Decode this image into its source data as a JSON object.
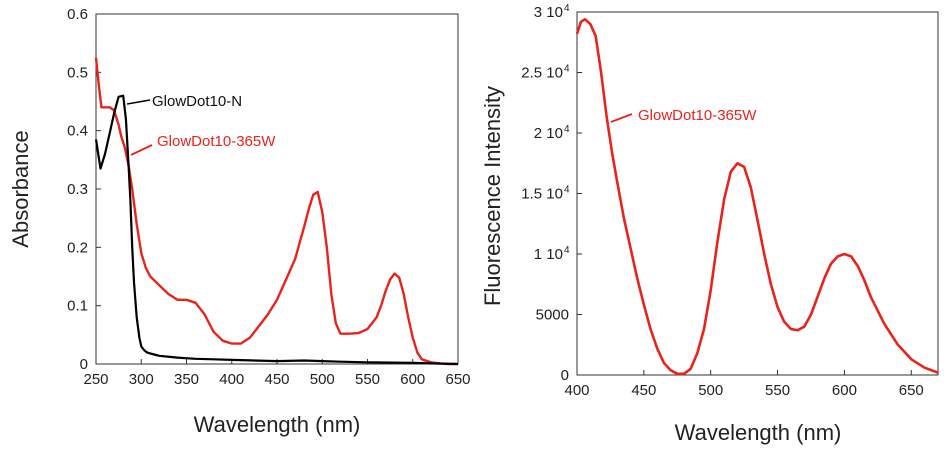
{
  "chart_data": [
    {
      "type": "line",
      "title": "",
      "xlabel": "Wavelength (nm)",
      "ylabel": "Absorbance",
      "xlim": [
        250,
        650
      ],
      "ylim": [
        0,
        0.6
      ],
      "xticks": [
        "250",
        "300",
        "350",
        "400",
        "450",
        "500",
        "550",
        "600",
        "650"
      ],
      "yticks": [
        "0",
        "0.1",
        "0.2",
        "0.3",
        "0.4",
        "0.5",
        "0.6"
      ],
      "series": [
        {
          "name": "GlowDot10-N",
          "color": "#000000",
          "x": [
            250,
            255,
            260,
            265,
            270,
            275,
            280,
            283,
            286,
            288,
            290,
            292,
            295,
            298,
            300,
            303,
            306,
            310,
            320,
            340,
            360,
            380,
            400,
            450,
            480,
            500,
            520,
            550,
            600,
            620,
            650
          ],
          "y": [
            0.385,
            0.335,
            0.36,
            0.395,
            0.43,
            0.458,
            0.46,
            0.42,
            0.34,
            0.28,
            0.2,
            0.14,
            0.08,
            0.045,
            0.03,
            0.024,
            0.02,
            0.018,
            0.014,
            0.011,
            0.009,
            0.008,
            0.007,
            0.005,
            0.006,
            0.005,
            0.004,
            0.003,
            0.002,
            0.001,
            0.0
          ]
        },
        {
          "name": "GlowDot10-365W",
          "color": "#e8231c",
          "x": [
            250,
            253,
            256,
            260,
            265,
            270,
            275,
            278,
            282,
            286,
            290,
            295,
            300,
            305,
            310,
            320,
            330,
            340,
            350,
            360,
            370,
            375,
            380,
            390,
            400,
            410,
            420,
            430,
            440,
            450,
            460,
            470,
            480,
            485,
            490,
            495,
            500,
            505,
            510,
            515,
            520,
            525,
            530,
            540,
            550,
            560,
            565,
            570,
            575,
            580,
            585,
            590,
            595,
            600,
            605,
            610,
            620,
            630,
            640,
            650
          ],
          "y": [
            0.525,
            0.48,
            0.44,
            0.44,
            0.44,
            0.435,
            0.41,
            0.39,
            0.37,
            0.34,
            0.3,
            0.24,
            0.19,
            0.165,
            0.15,
            0.135,
            0.12,
            0.11,
            0.11,
            0.105,
            0.085,
            0.07,
            0.055,
            0.04,
            0.035,
            0.035,
            0.045,
            0.065,
            0.085,
            0.11,
            0.145,
            0.18,
            0.235,
            0.265,
            0.29,
            0.295,
            0.26,
            0.2,
            0.12,
            0.07,
            0.052,
            0.052,
            0.052,
            0.053,
            0.06,
            0.08,
            0.1,
            0.125,
            0.145,
            0.155,
            0.148,
            0.12,
            0.08,
            0.045,
            0.02,
            0.008,
            0.003,
            0.001,
            0.0,
            0.0
          ]
        }
      ],
      "annotations": [
        {
          "text": "GlowDot10-N",
          "series": 0
        },
        {
          "text": "GlowDot10-365W",
          "series": 1
        }
      ],
      "grid": false
    },
    {
      "type": "line",
      "title": "",
      "xlabel": "Wavelength (nm)",
      "ylabel": "Fluorescence Intensity",
      "xlim": [
        400,
        670
      ],
      "ylim": [
        0,
        30000
      ],
      "xticks": [
        "400",
        "450",
        "500",
        "550",
        "600",
        "650"
      ],
      "ytick_values": [
        0,
        5000,
        10000,
        15000,
        20000,
        25000,
        30000
      ],
      "yticks": [
        "0",
        "5000",
        "1 10",
        "1.5 10",
        "2 10",
        "2.5 10",
        "3 10"
      ],
      "ytick_exponent": "4",
      "series": [
        {
          "name": "GlowDot10-365W",
          "color": "#e8231c",
          "x": [
            400,
            403,
            406,
            410,
            414,
            418,
            422,
            426,
            430,
            435,
            440,
            445,
            450,
            455,
            460,
            465,
            470,
            475,
            480,
            485,
            490,
            495,
            500,
            505,
            510,
            515,
            520,
            525,
            530,
            535,
            540,
            545,
            550,
            555,
            560,
            565,
            570,
            575,
            580,
            585,
            590,
            595,
            600,
            605,
            610,
            615,
            620,
            630,
            640,
            650,
            660,
            670
          ],
          "y": [
            28200,
            29200,
            29400,
            29000,
            28000,
            25000,
            21500,
            18500,
            16000,
            13000,
            10500,
            8000,
            5800,
            3800,
            2200,
            1000,
            400,
            100,
            100,
            500,
            1800,
            3800,
            7000,
            11000,
            14500,
            16800,
            17500,
            17200,
            15500,
            12800,
            10000,
            7500,
            5600,
            4400,
            3800,
            3700,
            4000,
            5000,
            6500,
            8000,
            9200,
            9800,
            10000,
            9800,
            9000,
            7800,
            6400,
            4200,
            2500,
            1300,
            600,
            200
          ]
        }
      ],
      "annotations": [
        {
          "text": "GlowDot10-365W",
          "series": 0
        }
      ],
      "grid": false
    }
  ]
}
